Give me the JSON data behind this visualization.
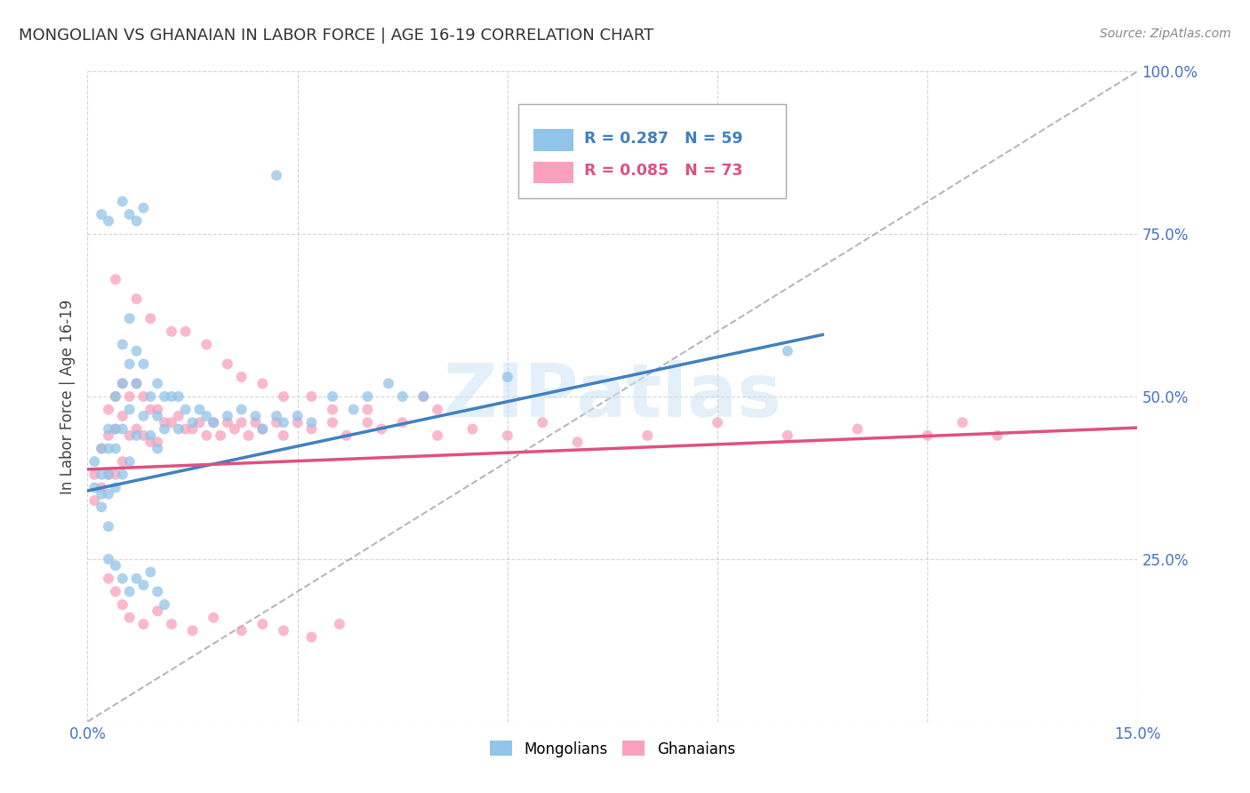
{
  "title": "MONGOLIAN VS GHANAIAN IN LABOR FORCE | AGE 16-19 CORRELATION CHART",
  "source": "Source: ZipAtlas.com",
  "ylabel": "In Labor Force | Age 16-19",
  "xlim": [
    0.0,
    0.15
  ],
  "ylim": [
    0.0,
    1.0
  ],
  "x_ticks": [
    0.0,
    0.03,
    0.06,
    0.09,
    0.12,
    0.15
  ],
  "x_tick_labels": [
    "0.0%",
    "",
    "",
    "",
    "",
    "15.0%"
  ],
  "y_ticks": [
    0.0,
    0.25,
    0.5,
    0.75,
    1.0
  ],
  "y_tick_labels_left": [
    "",
    "",
    "",
    "",
    ""
  ],
  "y_tick_labels_right": [
    "",
    "25.0%",
    "50.0%",
    "75.0%",
    "100.0%"
  ],
  "mongolian_color": "#90c4e8",
  "ghanaian_color": "#f9a0bc",
  "trend_mongolian_color": "#4080c0",
  "trend_ghanaian_color": "#e05080",
  "diagonal_color": "#b0b0b0",
  "background_color": "#ffffff",
  "grid_color": "#d0d0d0",
  "tick_label_color": "#4472c4",
  "mongolian_scatter_x": [
    0.001,
    0.001,
    0.002,
    0.002,
    0.002,
    0.002,
    0.003,
    0.003,
    0.003,
    0.003,
    0.003,
    0.004,
    0.004,
    0.004,
    0.004,
    0.005,
    0.005,
    0.005,
    0.005,
    0.006,
    0.006,
    0.006,
    0.006,
    0.007,
    0.007,
    0.007,
    0.008,
    0.008,
    0.009,
    0.009,
    0.01,
    0.01,
    0.01,
    0.011,
    0.011,
    0.012,
    0.013,
    0.013,
    0.014,
    0.015,
    0.016,
    0.017,
    0.018,
    0.02,
    0.022,
    0.024,
    0.025,
    0.027,
    0.028,
    0.03,
    0.032,
    0.035,
    0.038,
    0.04,
    0.043,
    0.045,
    0.048,
    0.06,
    0.1
  ],
  "mongolian_scatter_y": [
    0.4,
    0.36,
    0.42,
    0.38,
    0.35,
    0.33,
    0.45,
    0.42,
    0.38,
    0.35,
    0.3,
    0.5,
    0.45,
    0.42,
    0.36,
    0.58,
    0.52,
    0.45,
    0.38,
    0.62,
    0.55,
    0.48,
    0.4,
    0.57,
    0.52,
    0.44,
    0.55,
    0.47,
    0.5,
    0.44,
    0.52,
    0.47,
    0.42,
    0.5,
    0.45,
    0.5,
    0.5,
    0.45,
    0.48,
    0.46,
    0.48,
    0.47,
    0.46,
    0.47,
    0.48,
    0.47,
    0.45,
    0.47,
    0.46,
    0.47,
    0.46,
    0.5,
    0.48,
    0.5,
    0.52,
    0.5,
    0.5,
    0.53,
    0.57
  ],
  "mongolian_outlier_x": [
    0.002,
    0.003,
    0.005,
    0.006,
    0.007,
    0.008,
    0.027,
    0.003,
    0.004,
    0.005,
    0.006,
    0.007,
    0.008,
    0.009,
    0.01,
    0.011
  ],
  "mongolian_outlier_y": [
    0.78,
    0.77,
    0.8,
    0.78,
    0.77,
    0.79,
    0.84,
    0.25,
    0.24,
    0.22,
    0.2,
    0.22,
    0.21,
    0.23,
    0.2,
    0.18
  ],
  "ghanaian_scatter_x": [
    0.001,
    0.001,
    0.002,
    0.002,
    0.003,
    0.003,
    0.003,
    0.004,
    0.004,
    0.004,
    0.005,
    0.005,
    0.005,
    0.006,
    0.006,
    0.007,
    0.007,
    0.008,
    0.008,
    0.009,
    0.009,
    0.01,
    0.01,
    0.011,
    0.012,
    0.013,
    0.014,
    0.015,
    0.016,
    0.017,
    0.018,
    0.019,
    0.02,
    0.021,
    0.022,
    0.023,
    0.024,
    0.025,
    0.027,
    0.028,
    0.03,
    0.032,
    0.035,
    0.037,
    0.04,
    0.042,
    0.045,
    0.05,
    0.055,
    0.06,
    0.065,
    0.07,
    0.08,
    0.09,
    0.1,
    0.11,
    0.12,
    0.125,
    0.13
  ],
  "ghanaian_scatter_y": [
    0.38,
    0.34,
    0.42,
    0.36,
    0.48,
    0.44,
    0.38,
    0.5,
    0.45,
    0.38,
    0.52,
    0.47,
    0.4,
    0.5,
    0.44,
    0.52,
    0.45,
    0.5,
    0.44,
    0.48,
    0.43,
    0.48,
    0.43,
    0.46,
    0.46,
    0.47,
    0.45,
    0.45,
    0.46,
    0.44,
    0.46,
    0.44,
    0.46,
    0.45,
    0.46,
    0.44,
    0.46,
    0.45,
    0.46,
    0.44,
    0.46,
    0.45,
    0.46,
    0.44,
    0.46,
    0.45,
    0.46,
    0.44,
    0.45,
    0.44,
    0.46,
    0.43,
    0.44,
    0.46,
    0.44,
    0.45,
    0.44,
    0.46,
    0.44
  ],
  "ghanaian_outlier_x": [
    0.004,
    0.007,
    0.009,
    0.012,
    0.014,
    0.017,
    0.02,
    0.022,
    0.025,
    0.028,
    0.032,
    0.035,
    0.04,
    0.048,
    0.05,
    0.003,
    0.004,
    0.005,
    0.006,
    0.008,
    0.01,
    0.012,
    0.015,
    0.018,
    0.022,
    0.025,
    0.028,
    0.032,
    0.036
  ],
  "ghanaian_outlier_y": [
    0.68,
    0.65,
    0.62,
    0.6,
    0.6,
    0.58,
    0.55,
    0.53,
    0.52,
    0.5,
    0.5,
    0.48,
    0.48,
    0.5,
    0.48,
    0.22,
    0.2,
    0.18,
    0.16,
    0.15,
    0.17,
    0.15,
    0.14,
    0.16,
    0.14,
    0.15,
    0.14,
    0.13,
    0.15
  ],
  "trend_mongolian_x0": 0.0,
  "trend_mongolian_y0": 0.355,
  "trend_mongolian_x1": 0.105,
  "trend_mongolian_y1": 0.595,
  "trend_ghanaian_x0": 0.0,
  "trend_ghanaian_y0": 0.388,
  "trend_ghanaian_x1": 0.15,
  "trend_ghanaian_y1": 0.452
}
